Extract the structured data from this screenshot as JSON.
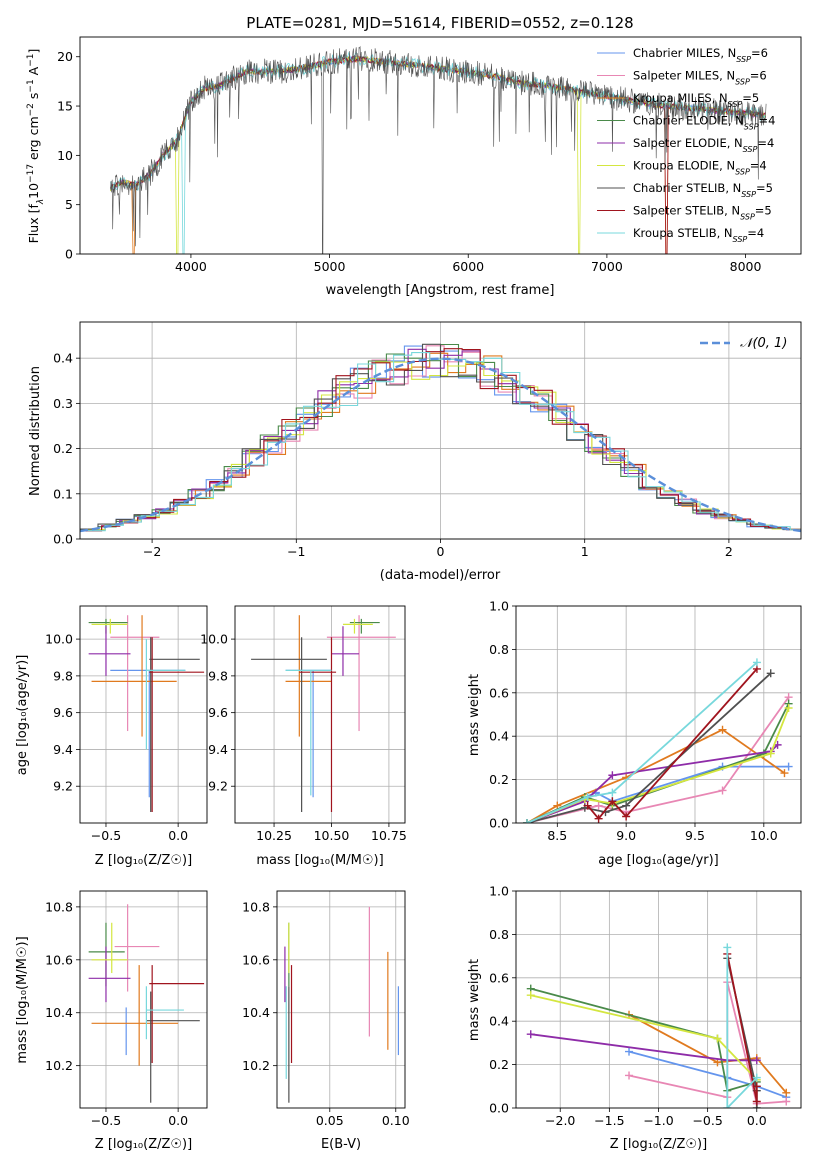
{
  "colors": {
    "Chabrier MILES": "#6495ed",
    "Salpeter MILES": "#e887b4",
    "Kroupa MILES": "#e07a1f",
    "Chabrier ELODIE": "#4a8a4a",
    "Salpeter ELODIE": "#8e2ca8",
    "Kroupa ELODIE": "#d4e640",
    "Chabrier STELIB": "#505050",
    "Salpeter STELIB": "#a0141e",
    "Kroupa STELIB": "#78d8dc"
  },
  "chart_data": [
    {
      "id": "spectrum",
      "type": "line",
      "title": "PLATE=0281, MJD=51614, FIBERID=0552, z=0.128",
      "xlabel": "wavelength [Angstrom, rest frame]",
      "ylabel_parts": [
        "Flux [f",
        "λ",
        "10",
        "−17",
        " erg cm",
        "−2",
        " s",
        "−1",
        " A",
        "−1",
        "]"
      ],
      "xlim": [
        3200,
        8400
      ],
      "ylim": [
        0,
        22
      ],
      "xticks": [
        4000,
        5000,
        6000,
        7000,
        8000
      ],
      "yticks": [
        0,
        5,
        10,
        15,
        20
      ],
      "continuum": {
        "x": [
          3400,
          3500,
          3600,
          3700,
          3800,
          3900,
          4000,
          4100,
          4200,
          4400,
          4600,
          4800,
          5000,
          5200,
          5400,
          5600,
          5800,
          6000,
          6200,
          6400,
          6600,
          6800,
          7000,
          7200,
          7400,
          7600,
          7800,
          8000,
          8150
        ],
        "y": [
          6.5,
          7.3,
          7.0,
          8.0,
          10.0,
          11.5,
          15.5,
          16.8,
          17.0,
          18.5,
          18.5,
          18.8,
          19.5,
          19.8,
          19.5,
          19.2,
          18.8,
          18.5,
          18.0,
          17.3,
          17.0,
          16.5,
          16.0,
          15.5,
          15.0,
          14.8,
          14.5,
          14.3,
          14.0
        ]
      },
      "legend": [
        {
          "label": "Chabrier MILES, N",
          "sub": "SSP",
          "tail": "=6",
          "series": "Chabrier MILES"
        },
        {
          "label": "Salpeter MILES, N",
          "sub": "SSP",
          "tail": "=6",
          "series": "Salpeter MILES"
        },
        {
          "label": "Kroupa MILES, N",
          "sub": "SSP",
          "tail": "=5",
          "series": "Kroupa MILES"
        },
        {
          "label": "Chabrier ELODIE, N",
          "sub": "SSP",
          "tail": "=4",
          "series": "Chabrier ELODIE"
        },
        {
          "label": "Salpeter ELODIE, N",
          "sub": "SSP",
          "tail": "=4",
          "series": "Salpeter ELODIE"
        },
        {
          "label": "Kroupa ELODIE, N",
          "sub": "SSP",
          "tail": "=4",
          "series": "Kroupa ELODIE"
        },
        {
          "label": "Chabrier STELIB, N",
          "sub": "SSP",
          "tail": "=5",
          "series": "Chabrier STELIB"
        },
        {
          "label": "Salpeter STELIB, N",
          "sub": "SSP",
          "tail": "=5",
          "series": "Salpeter STELIB"
        },
        {
          "label": "Kroupa STELIB, N",
          "sub": "SSP",
          "tail": "=4",
          "series": "Kroupa STELIB"
        }
      ]
    },
    {
      "id": "residuals",
      "type": "line",
      "xlabel": "(data-model)/error",
      "ylabel": "Normed distribution",
      "xlim": [
        -2.5,
        2.5
      ],
      "ylim": [
        0,
        0.48
      ],
      "xticks": [
        -2,
        -1,
        0,
        1,
        2
      ],
      "yticks": [
        0.0,
        0.1,
        0.2,
        0.3,
        0.4
      ],
      "grid": true,
      "gaussian_label": "𝒩(0, 1)",
      "gaussian_color": "#5b8fd9",
      "histogram_center_heights": [
        0.02,
        0.03,
        0.04,
        0.05,
        0.06,
        0.08,
        0.1,
        0.12,
        0.15,
        0.18,
        0.21,
        0.24,
        0.27,
        0.3,
        0.33,
        0.35,
        0.37,
        0.38,
        0.39,
        0.39,
        0.39,
        0.38,
        0.37,
        0.35,
        0.33,
        0.3,
        0.27,
        0.24,
        0.21,
        0.18,
        0.15,
        0.12,
        0.1,
        0.08,
        0.06,
        0.05,
        0.04,
        0.03,
        0.025,
        0.02
      ]
    },
    {
      "id": "age-vs-Z",
      "type": "scatter",
      "xlabel": "Z [log₁₀(Z/Z☉)]",
      "ylabel": "age  [log₁₀(age/yr)]",
      "xlim": [
        -0.68,
        0.2
      ],
      "ylim": [
        9.0,
        10.18
      ],
      "xticks": [
        -0.5,
        0.0
      ],
      "yticks": [
        9.2,
        9.4,
        9.6,
        9.8,
        10.0
      ],
      "grid": true,
      "points": [
        {
          "series": "Chabrier MILES",
          "x": -0.2,
          "xlo": -0.47,
          "xhi": 0.05,
          "y": 9.83,
          "ylo": 9.14,
          "yhi": 9.83
        },
        {
          "series": "Salpeter MILES",
          "x": -0.35,
          "xlo": -0.47,
          "xhi": -0.13,
          "y": 10.01,
          "ylo": 9.5,
          "yhi": 10.13
        },
        {
          "series": "Kroupa MILES",
          "x": -0.25,
          "xlo": -0.6,
          "xhi": -0.01,
          "y": 9.77,
          "ylo": 9.47,
          "yhi": 10.13
        },
        {
          "series": "Chabrier ELODIE",
          "x": -0.5,
          "xlo": -0.62,
          "xhi": -0.35,
          "y": 10.09,
          "ylo": 10.03,
          "yhi": 10.11
        },
        {
          "series": "Salpeter ELODIE",
          "x": -0.5,
          "xlo": -0.62,
          "xhi": -0.33,
          "y": 9.92,
          "ylo": 9.8,
          "yhi": 10.07
        },
        {
          "series": "Kroupa ELODIE",
          "x": -0.47,
          "xlo": -0.6,
          "xhi": -0.35,
          "y": 10.08,
          "ylo": 10.03,
          "yhi": 10.11
        },
        {
          "series": "Chabrier STELIB",
          "x": -0.19,
          "xlo": -0.2,
          "xhi": 0.15,
          "y": 9.89,
          "ylo": 9.06,
          "yhi": 10.01
        },
        {
          "series": "Salpeter STELIB",
          "x": -0.18,
          "xlo": -0.2,
          "xhi": 0.18,
          "y": 9.82,
          "ylo": 9.06,
          "yhi": 10.01
        },
        {
          "series": "Kroupa STELIB",
          "x": -0.22,
          "xlo": -0.22,
          "xhi": 0.05,
          "y": 9.83,
          "ylo": 9.4,
          "yhi": 10.0
        }
      ]
    },
    {
      "id": "age-vs-mass",
      "type": "scatter",
      "xlabel": "mass [log₁₀(M/M☉)]",
      "ylabel": "",
      "xlim": [
        10.08,
        10.82
      ],
      "ylim": [
        9.0,
        10.18
      ],
      "xticks": [
        10.25,
        10.5,
        10.75
      ],
      "xtick_labels": [
        "10.25",
        "10.50",
        "10.75"
      ],
      "yticks": [
        9.2,
        9.4,
        9.6,
        9.8,
        10.0
      ],
      "grid": true,
      "points": [
        {
          "series": "Chabrier MILES",
          "x": 10.42,
          "xlo": 10.3,
          "xhi": 10.5,
          "y": 9.83,
          "ylo": 9.14,
          "yhi": 9.83
        },
        {
          "series": "Salpeter MILES",
          "x": 10.62,
          "xlo": 10.48,
          "xhi": 10.78,
          "y": 10.01,
          "ylo": 9.5,
          "yhi": 10.13
        },
        {
          "series": "Kroupa MILES",
          "x": 10.36,
          "xlo": 10.3,
          "xhi": 10.5,
          "y": 9.77,
          "ylo": 9.47,
          "yhi": 10.13
        },
        {
          "series": "Chabrier ELODIE",
          "x": 10.63,
          "xlo": 10.58,
          "xhi": 10.71,
          "y": 10.09,
          "ylo": 10.03,
          "yhi": 10.11
        },
        {
          "series": "Salpeter ELODIE",
          "x": 10.55,
          "xlo": 10.5,
          "xhi": 10.62,
          "y": 9.92,
          "ylo": 9.8,
          "yhi": 10.07
        },
        {
          "series": "Kroupa ELODIE",
          "x": 10.6,
          "xlo": 10.55,
          "xhi": 10.68,
          "y": 10.08,
          "ylo": 10.03,
          "yhi": 10.11
        },
        {
          "series": "Chabrier STELIB",
          "x": 10.37,
          "xlo": 10.15,
          "xhi": 10.48,
          "y": 9.89,
          "ylo": 9.06,
          "yhi": 10.01
        },
        {
          "series": "Salpeter STELIB",
          "x": 10.5,
          "xlo": 10.36,
          "xhi": 10.52,
          "y": 9.82,
          "ylo": 9.06,
          "yhi": 10.01
        },
        {
          "series": "Kroupa STELIB",
          "x": 10.41,
          "xlo": 10.3,
          "xhi": 10.5,
          "y": 9.83,
          "ylo": 9.15,
          "yhi": 9.83
        }
      ]
    },
    {
      "id": "mass-weight-vs-age",
      "type": "line",
      "xlabel": "age  [log₁₀(age/yr)]",
      "ylabel": "mass weight",
      "xlim": [
        8.2,
        10.27
      ],
      "ylim": [
        0,
        1.0
      ],
      "xticks": [
        8.5,
        9.0,
        9.5,
        10.0
      ],
      "yticks": [
        0.0,
        0.2,
        0.4,
        0.6,
        0.8,
        1.0
      ],
      "grid": true,
      "series": [
        {
          "series": "Chabrier MILES",
          "x": [
            8.28,
            8.78,
            8.9,
            9.7,
            10.18
          ],
          "y": [
            0.0,
            0.14,
            0.1,
            0.26,
            0.26
          ]
        },
        {
          "series": "Salpeter MILES",
          "x": [
            8.28,
            8.8,
            9.0,
            9.7,
            10.18
          ],
          "y": [
            0.0,
            0.08,
            0.05,
            0.15,
            0.58
          ]
        },
        {
          "series": "Kroupa MILES",
          "x": [
            8.28,
            8.5,
            9.0,
            9.7,
            10.15
          ],
          "y": [
            0.0,
            0.08,
            0.21,
            0.43,
            0.23
          ]
        },
        {
          "series": "Chabrier ELODIE",
          "x": [
            8.28,
            8.7,
            8.9,
            10.0,
            10.18
          ],
          "y": [
            0.0,
            0.12,
            0.08,
            0.32,
            0.55
          ]
        },
        {
          "series": "Salpeter ELODIE",
          "x": [
            8.28,
            8.7,
            8.9,
            10.05,
            10.1
          ],
          "y": [
            0.0,
            0.1,
            0.22,
            0.33,
            0.36
          ]
        },
        {
          "series": "Kroupa ELODIE",
          "x": [
            8.28,
            8.7,
            8.9,
            10.05,
            10.18
          ],
          "y": [
            0.0,
            0.11,
            0.09,
            0.32,
            0.53
          ]
        },
        {
          "series": "Chabrier STELIB",
          "x": [
            8.28,
            8.7,
            8.85,
            9.0,
            10.05
          ],
          "y": [
            0.0,
            0.07,
            0.05,
            0.08,
            0.69
          ]
        },
        {
          "series": "Salpeter STELIB",
          "x": [
            8.72,
            8.8,
            8.9,
            9.0,
            9.95
          ],
          "y": [
            0.08,
            0.02,
            0.1,
            0.03,
            0.71
          ]
        },
        {
          "series": "Kroupa STELIB",
          "x": [
            8.28,
            8.72,
            8.9,
            9.95
          ],
          "y": [
            0.0,
            0.12,
            0.14,
            0.74
          ]
        }
      ]
    },
    {
      "id": "mass-vs-Z",
      "type": "scatter",
      "xlabel": "Z [log₁₀(Z/Z☉)]",
      "ylabel": "mass [log₁₀(M/M☉)]",
      "xlim": [
        -0.68,
        0.2
      ],
      "ylim": [
        10.04,
        10.86
      ],
      "xticks": [
        -0.5,
        0.0
      ],
      "yticks": [
        10.2,
        10.4,
        10.6,
        10.8
      ],
      "grid": true,
      "points": [
        {
          "series": "Chabrier MILES",
          "x": -0.36,
          "xlo": -0.36,
          "xhi": -0.36,
          "y": 10.42,
          "ylo": 10.24,
          "yhi": 10.42
        },
        {
          "series": "Salpeter MILES",
          "x": -0.35,
          "xlo": -0.44,
          "xhi": -0.13,
          "y": 10.65,
          "ylo": 10.48,
          "yhi": 10.81
        },
        {
          "series": "Kroupa MILES",
          "x": -0.27,
          "xlo": -0.6,
          "xhi": 0.0,
          "y": 10.36,
          "ylo": 10.2,
          "yhi": 10.58
        },
        {
          "series": "Chabrier ELODIE",
          "x": -0.5,
          "xlo": -0.62,
          "xhi": -0.37,
          "y": 10.63,
          "ylo": 10.5,
          "yhi": 10.74
        },
        {
          "series": "Salpeter ELODIE",
          "x": -0.5,
          "xlo": -0.62,
          "xhi": -0.33,
          "y": 10.53,
          "ylo": 10.44,
          "yhi": 10.65
        },
        {
          "series": "Kroupa ELODIE",
          "x": -0.46,
          "xlo": -0.6,
          "xhi": -0.35,
          "y": 10.6,
          "ylo": 10.55,
          "yhi": 10.74
        },
        {
          "series": "Chabrier STELIB",
          "x": -0.19,
          "xlo": -0.22,
          "xhi": 0.15,
          "y": 10.37,
          "ylo": 10.06,
          "yhi": 10.48
        },
        {
          "series": "Salpeter STELIB",
          "x": -0.18,
          "xlo": -0.2,
          "xhi": 0.18,
          "y": 10.51,
          "ylo": 10.21,
          "yhi": 10.58
        },
        {
          "series": "Kroupa STELIB",
          "x": -0.22,
          "xlo": -0.22,
          "xhi": 0.04,
          "y": 10.41,
          "ylo": 10.3,
          "yhi": 10.5
        }
      ]
    },
    {
      "id": "mass-vs-ebv",
      "type": "scatter",
      "xlabel": "E(B-V)",
      "ylabel": "",
      "xlim": [
        0.01,
        0.107
      ],
      "ylim": [
        10.04,
        10.86
      ],
      "xticks": [
        0.05,
        0.1
      ],
      "xtick_labels": [
        "0.05",
        "0.10"
      ],
      "yticks": [
        10.2,
        10.4,
        10.6,
        10.8
      ],
      "grid": true,
      "points": [
        {
          "series": "Chabrier MILES",
          "x": 0.102,
          "y": 10.42,
          "ylo": 10.24,
          "yhi": 10.5
        },
        {
          "series": "Salpeter MILES",
          "x": 0.08,
          "y": 10.65,
          "ylo": 10.31,
          "yhi": 10.8
        },
        {
          "series": "Kroupa MILES",
          "x": 0.094,
          "y": 10.36,
          "ylo": 10.26,
          "yhi": 10.63
        },
        {
          "series": "Chabrier ELODIE",
          "x": 0.019,
          "y": 10.63,
          "ylo": 10.5,
          "yhi": 10.74
        },
        {
          "series": "Salpeter ELODIE",
          "x": 0.016,
          "y": 10.53,
          "ylo": 10.44,
          "yhi": 10.65
        },
        {
          "series": "Kroupa ELODIE",
          "x": 0.019,
          "y": 10.6,
          "ylo": 10.55,
          "yhi": 10.74
        },
        {
          "series": "Chabrier STELIB",
          "x": 0.019,
          "y": 10.37,
          "ylo": 10.06,
          "yhi": 10.5
        },
        {
          "series": "Salpeter STELIB",
          "x": 0.021,
          "y": 10.51,
          "ylo": 10.21,
          "yhi": 10.58
        },
        {
          "series": "Kroupa STELIB",
          "x": 0.017,
          "y": 10.41,
          "ylo": 10.15,
          "yhi": 10.5
        }
      ]
    },
    {
      "id": "mass-weight-vs-Z",
      "type": "line",
      "xlabel": "Z [log₁₀(Z/Z☉)]",
      "ylabel": "mass weight",
      "xlim": [
        -2.45,
        0.45
      ],
      "ylim": [
        0,
        1.0
      ],
      "xticks": [
        -2.0,
        -1.5,
        -1.0,
        -0.5,
        0.0
      ],
      "yticks": [
        0.0,
        0.2,
        0.4,
        0.6,
        0.8,
        1.0
      ],
      "grid": true,
      "series": [
        {
          "series": "Chabrier MILES",
          "x": [
            -1.3,
            -0.3,
            0.0,
            0.3
          ],
          "y": [
            0.26,
            0.14,
            0.1,
            0.05
          ]
        },
        {
          "series": "Salpeter MILES",
          "x": [
            -1.3,
            -0.3,
            -0.3,
            0.0,
            0.3
          ],
          "y": [
            0.15,
            0.05,
            0.58,
            0.02,
            0.03
          ]
        },
        {
          "series": "Kroupa MILES",
          "x": [
            -1.3,
            -0.4,
            0.0,
            0.3
          ],
          "y": [
            0.43,
            0.21,
            0.23,
            0.07
          ]
        },
        {
          "series": "Chabrier ELODIE",
          "x": [
            -2.3,
            -0.4,
            -0.3,
            0.0
          ],
          "y": [
            0.55,
            0.32,
            0.08,
            0.12
          ]
        },
        {
          "series": "Salpeter ELODIE",
          "x": [
            -2.3,
            -0.3,
            0.0
          ],
          "y": [
            0.34,
            0.22,
            0.22
          ]
        },
        {
          "series": "Kroupa ELODIE",
          "x": [
            -2.3,
            -0.4,
            0.0
          ],
          "y": [
            0.52,
            0.32,
            0.13
          ]
        },
        {
          "series": "Chabrier STELIB",
          "x": [
            -0.3,
            0.0,
            0.0
          ],
          "y": [
            0.69,
            0.08,
            0.0
          ]
        },
        {
          "series": "Salpeter STELIB",
          "x": [
            -0.3,
            0.0,
            0.0
          ],
          "y": [
            0.71,
            0.03,
            0.1
          ]
        },
        {
          "series": "Kroupa STELIB",
          "x": [
            -0.3,
            -0.3,
            0.0
          ],
          "y": [
            0.74,
            0.0,
            0.14
          ]
        }
      ]
    }
  ]
}
